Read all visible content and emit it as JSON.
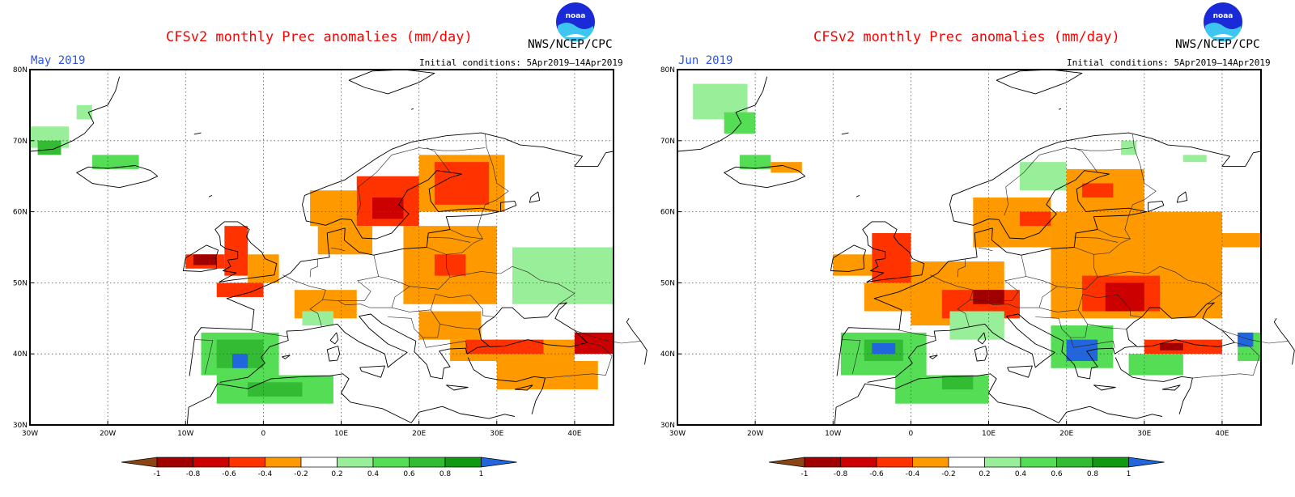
{
  "panels": [
    {
      "title": "CFSv2 monthly Prec anomalies (mm/day)",
      "agency": "NWS/NCEP/CPC",
      "month": "May 2019",
      "initial_conditions": "Initial conditions: 5Apr2019–14Apr2019"
    },
    {
      "title": "CFSv2 monthly Prec anomalies (mm/day)",
      "agency": "NWS/NCEP/CPC",
      "month": "Jun 2019",
      "initial_conditions": "Initial conditions: 5Apr2019–14Apr2019"
    }
  ],
  "map": {
    "lon_range": [
      -30,
      45
    ],
    "lat_range": [
      30,
      80
    ],
    "lon_ticks": [
      "30W",
      "20W",
      "10W",
      "0",
      "10E",
      "20E",
      "30E",
      "40E"
    ],
    "lat_ticks": [
      "30N",
      "40N",
      "50N",
      "60N",
      "70N",
      "80N"
    ],
    "grid": true
  },
  "colorbar": {
    "labels": [
      "-1",
      "-0.8",
      "-0.6",
      "-0.4",
      "-0.2",
      "0.2",
      "0.4",
      "0.6",
      "0.8",
      "1"
    ],
    "colors": [
      "#8b4513",
      "#a00000",
      "#cc0000",
      "#ff3300",
      "#ff9900",
      "#ffffff",
      "#99ee99",
      "#55dd55",
      "#33bb33",
      "#119911",
      "#2266dd"
    ]
  },
  "palette": {
    "below_-1": "#8b4513",
    "-1_-0.8": "#a00000",
    "-0.8_-0.6": "#cc0000",
    "-0.6_-0.4": "#ff3300",
    "-0.4_-0.2": "#ff9900",
    "0.2_0.4": "#99ee99",
    "0.4_0.6": "#55dd55",
    "0.6_0.8": "#33bb33",
    "0.8_1": "#119911",
    "above_1": "#2266dd"
  },
  "anomaly_regions": [
    [
      {
        "lon": [
          -30,
          -25
        ],
        "lat": [
          69,
          72
        ],
        "c": "0.2_0.4"
      },
      {
        "lon": [
          -29,
          -26
        ],
        "lat": [
          68,
          70
        ],
        "c": "0.6_0.8"
      },
      {
        "lon": [
          -24,
          -22
        ],
        "lat": [
          73,
          75
        ],
        "c": "0.2_0.4"
      },
      {
        "lon": [
          -22,
          -16
        ],
        "lat": [
          66,
          68
        ],
        "c": "0.4_0.6"
      },
      {
        "lon": [
          -10,
          -5
        ],
        "lat": [
          52,
          54
        ],
        "c": "-0.6_-0.4"
      },
      {
        "lon": [
          -9,
          -6
        ],
        "lat": [
          52.5,
          54
        ],
        "c": "-1_-0.8"
      },
      {
        "lon": [
          -5,
          -2
        ],
        "lat": [
          51,
          58
        ],
        "c": "-0.6_-0.4"
      },
      {
        "lon": [
          -2,
          2
        ],
        "lat": [
          50,
          54
        ],
        "c": "-0.4_-0.2"
      },
      {
        "lon": [
          -6,
          0
        ],
        "lat": [
          48,
          50
        ],
        "c": "-0.6_-0.4"
      },
      {
        "lon": [
          6,
          12
        ],
        "lat": [
          58,
          63
        ],
        "c": "-0.4_-0.2"
      },
      {
        "lon": [
          12,
          20
        ],
        "lat": [
          58,
          65
        ],
        "c": "-0.6_-0.4"
      },
      {
        "lon": [
          14,
          18
        ],
        "lat": [
          59,
          62
        ],
        "c": "-0.8_-0.6"
      },
      {
        "lon": [
          20,
          31
        ],
        "lat": [
          60,
          68
        ],
        "c": "-0.4_-0.2"
      },
      {
        "lon": [
          22,
          29
        ],
        "lat": [
          61,
          67
        ],
        "c": "-0.6_-0.4"
      },
      {
        "lon": [
          7,
          14
        ],
        "lat": [
          54,
          58
        ],
        "c": "-0.4_-0.2"
      },
      {
        "lon": [
          18,
          30
        ],
        "lat": [
          47,
          58
        ],
        "c": "-0.4_-0.2"
      },
      {
        "lon": [
          22,
          26
        ],
        "lat": [
          51,
          54
        ],
        "c": "-0.6_-0.4"
      },
      {
        "lon": [
          4,
          12
        ],
        "lat": [
          45,
          49
        ],
        "c": "-0.4_-0.2"
      },
      {
        "lon": [
          20,
          28
        ],
        "lat": [
          42,
          46
        ],
        "c": "-0.4_-0.2"
      },
      {
        "lon": [
          24,
          40
        ],
        "lat": [
          39,
          42
        ],
        "c": "-0.4_-0.2"
      },
      {
        "lon": [
          26,
          36
        ],
        "lat": [
          40,
          42
        ],
        "c": "-0.6_-0.4"
      },
      {
        "lon": [
          40,
          45
        ],
        "lat": [
          40,
          43
        ],
        "c": "-0.8_-0.6"
      },
      {
        "lon": [
          30,
          43
        ],
        "lat": [
          35,
          39
        ],
        "c": "-0.4_-0.2"
      },
      {
        "lon": [
          32,
          45
        ],
        "lat": [
          47,
          55
        ],
        "c": "0.2_0.4"
      },
      {
        "lon": [
          -8,
          2
        ],
        "lat": [
          37,
          43
        ],
        "c": "0.4_0.6"
      },
      {
        "lon": [
          -6,
          0
        ],
        "lat": [
          38,
          42
        ],
        "c": "0.6_0.8"
      },
      {
        "lon": [
          -4,
          -2
        ],
        "lat": [
          38,
          40
        ],
        "c": "above_1"
      },
      {
        "lon": [
          -6,
          9
        ],
        "lat": [
          33,
          37
        ],
        "c": "0.4_0.6"
      },
      {
        "lon": [
          -2,
          5
        ],
        "lat": [
          34,
          36
        ],
        "c": "0.6_0.8"
      },
      {
        "lon": [
          5,
          9
        ],
        "lat": [
          44,
          46
        ],
        "c": "0.2_0.4"
      }
    ],
    [
      {
        "lon": [
          -28,
          -21
        ],
        "lat": [
          73,
          78
        ],
        "c": "0.2_0.4"
      },
      {
        "lon": [
          -24,
          -20
        ],
        "lat": [
          71,
          74
        ],
        "c": "0.4_0.6"
      },
      {
        "lon": [
          -22,
          -18
        ],
        "lat": [
          66,
          68
        ],
        "c": "0.4_0.6"
      },
      {
        "lon": [
          -18,
          -14
        ],
        "lat": [
          65.5,
          67
        ],
        "c": "-0.4_-0.2"
      },
      {
        "lon": [
          -10,
          -5
        ],
        "lat": [
          51,
          54
        ],
        "c": "-0.4_-0.2"
      },
      {
        "lon": [
          -5,
          0
        ],
        "lat": [
          50,
          57
        ],
        "c": "-0.6_-0.4"
      },
      {
        "lon": [
          -6,
          0
        ],
        "lat": [
          46,
          50
        ],
        "c": "-0.4_-0.2"
      },
      {
        "lon": [
          0,
          12
        ],
        "lat": [
          44,
          53
        ],
        "c": "-0.4_-0.2"
      },
      {
        "lon": [
          4,
          14
        ],
        "lat": [
          45,
          49
        ],
        "c": "-0.6_-0.4"
      },
      {
        "lon": [
          8,
          12
        ],
        "lat": [
          47,
          49
        ],
        "c": "-1_-0.8"
      },
      {
        "lon": [
          8,
          18
        ],
        "lat": [
          55,
          62
        ],
        "c": "-0.4_-0.2"
      },
      {
        "lon": [
          14,
          18
        ],
        "lat": [
          58,
          60
        ],
        "c": "-0.6_-0.4"
      },
      {
        "lon": [
          20,
          30
        ],
        "lat": [
          60,
          66
        ],
        "c": "-0.4_-0.2"
      },
      {
        "lon": [
          22,
          26
        ],
        "lat": [
          62,
          64
        ],
        "c": "-0.6_-0.4"
      },
      {
        "lon": [
          18,
          40
        ],
        "lat": [
          45,
          60
        ],
        "c": "-0.4_-0.2"
      },
      {
        "lon": [
          22,
          32
        ],
        "lat": [
          46,
          51
        ],
        "c": "-0.6_-0.4"
      },
      {
        "lon": [
          25,
          30
        ],
        "lat": [
          46,
          50
        ],
        "c": "-0.8_-0.6"
      },
      {
        "lon": [
          38,
          45
        ],
        "lat": [
          55,
          57
        ],
        "c": "-0.4_-0.2"
      },
      {
        "lon": [
          30,
          40
        ],
        "lat": [
          40,
          42
        ],
        "c": "-0.6_-0.4"
      },
      {
        "lon": [
          32,
          35
        ],
        "lat": [
          40.5,
          41.5
        ],
        "c": "-1_-0.8"
      },
      {
        "lon": [
          5,
          12
        ],
        "lat": [
          42,
          46
        ],
        "c": "0.2_0.4"
      },
      {
        "lon": [
          18,
          26
        ],
        "lat": [
          38,
          44
        ],
        "c": "0.4_0.6"
      },
      {
        "lon": [
          20,
          24
        ],
        "lat": [
          39,
          42
        ],
        "c": "above_1"
      },
      {
        "lon": [
          28,
          35
        ],
        "lat": [
          37,
          40
        ],
        "c": "0.4_0.6"
      },
      {
        "lon": [
          42,
          45
        ],
        "lat": [
          39,
          43
        ],
        "c": "0.4_0.6"
      },
      {
        "lon": [
          42,
          44
        ],
        "lat": [
          41,
          43
        ],
        "c": "above_1"
      },
      {
        "lon": [
          -9,
          2
        ],
        "lat": [
          37,
          43
        ],
        "c": "0.4_0.6"
      },
      {
        "lon": [
          -6,
          -1
        ],
        "lat": [
          39,
          42
        ],
        "c": "0.6_0.8"
      },
      {
        "lon": [
          -5,
          -2
        ],
        "lat": [
          40,
          41.5
        ],
        "c": "above_1"
      },
      {
        "lon": [
          -2,
          10
        ],
        "lat": [
          33,
          37
        ],
        "c": "0.4_0.6"
      },
      {
        "lon": [
          4,
          8
        ],
        "lat": [
          35,
          37
        ],
        "c": "0.6_0.8"
      },
      {
        "lon": [
          14,
          20
        ],
        "lat": [
          63,
          67
        ],
        "c": "0.2_0.4"
      },
      {
        "lon": [
          27,
          29
        ],
        "lat": [
          68,
          70
        ],
        "c": "0.2_0.4"
      },
      {
        "lon": [
          35,
          38
        ],
        "lat": [
          67,
          68
        ],
        "c": "0.2_0.4"
      }
    ]
  ]
}
